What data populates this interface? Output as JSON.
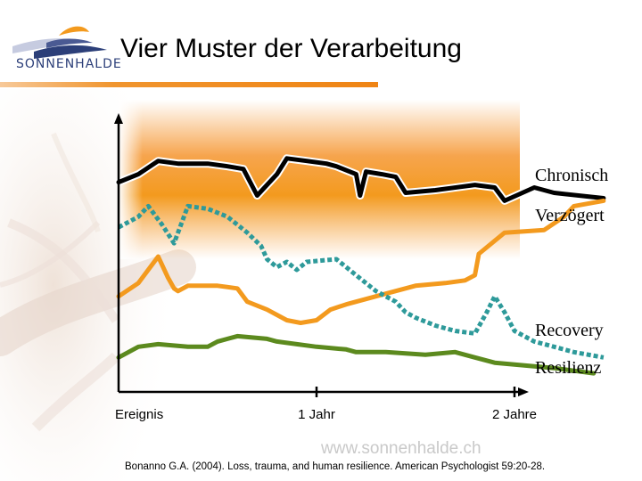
{
  "slide": {
    "title": "Vier Muster der Verarbeitung",
    "logo_text": "SONNENHALDE",
    "watermark": "www.sonnenhalde.ch",
    "citation": "Bonanno G.A. (2004). Loss, trauma, and human resilience. American Psychologist 59:20-28."
  },
  "colors": {
    "accent_orange": "#f39a1e",
    "band_orange": "#f6a044",
    "logo_blue": "#2c3f79"
  },
  "chart_data": {
    "type": "line",
    "title": "",
    "xlabel": "",
    "ylabel": "",
    "x_ticks": [
      {
        "label": "Ereignis",
        "x": 0
      },
      {
        "label": "1 Jahr",
        "x": 1
      },
      {
        "label": "2 Jahre",
        "x": 2
      }
    ],
    "xlim": [
      0,
      2.9
    ],
    "ylim": [
      0,
      100
    ],
    "grid": false,
    "series": [
      {
        "name": "Chronisch",
        "color": "#000000",
        "style": "solid",
        "highlight_band": true,
        "points": [
          [
            0,
            79
          ],
          [
            0.1,
            82
          ],
          [
            0.2,
            87
          ],
          [
            0.3,
            86
          ],
          [
            0.45,
            86
          ],
          [
            0.55,
            85
          ],
          [
            0.63,
            84
          ],
          [
            0.7,
            74
          ],
          [
            0.8,
            82
          ],
          [
            0.85,
            88
          ],
          [
            0.95,
            87
          ],
          [
            1.05,
            86
          ],
          [
            1.1,
            85
          ],
          [
            1.2,
            82
          ],
          [
            1.22,
            74
          ],
          [
            1.25,
            83
          ],
          [
            1.33,
            82
          ],
          [
            1.4,
            81
          ],
          [
            1.45,
            75
          ],
          [
            1.6,
            76
          ],
          [
            1.8,
            78
          ],
          [
            1.9,
            77
          ],
          [
            1.95,
            72
          ],
          [
            2.1,
            77
          ],
          [
            2.2,
            75
          ],
          [
            2.45,
            73
          ]
        ]
      },
      {
        "name": "Verzögert",
        "color": "#f39a1e",
        "style": "solid",
        "points": [
          [
            0,
            36
          ],
          [
            0.1,
            41
          ],
          [
            0.2,
            51
          ],
          [
            0.25,
            43
          ],
          [
            0.28,
            39
          ],
          [
            0.3,
            38
          ],
          [
            0.35,
            40
          ],
          [
            0.5,
            40
          ],
          [
            0.6,
            39
          ],
          [
            0.65,
            34
          ],
          [
            0.75,
            31
          ],
          [
            0.85,
            27
          ],
          [
            0.92,
            26
          ],
          [
            1.0,
            27
          ],
          [
            1.07,
            31
          ],
          [
            1.15,
            33
          ],
          [
            1.25,
            35
          ],
          [
            1.35,
            37
          ],
          [
            1.5,
            40
          ],
          [
            1.65,
            41
          ],
          [
            1.75,
            42
          ],
          [
            1.8,
            44
          ],
          [
            1.82,
            52
          ],
          [
            1.95,
            60
          ],
          [
            2.15,
            61
          ],
          [
            2.25,
            66
          ],
          [
            2.3,
            70
          ],
          [
            2.45,
            72
          ]
        ]
      },
      {
        "name": "Recovery",
        "color": "#2e9a9a",
        "style": "dotted",
        "points": [
          [
            0,
            62
          ],
          [
            0.1,
            66
          ],
          [
            0.15,
            70
          ],
          [
            0.22,
            63
          ],
          [
            0.28,
            56
          ],
          [
            0.35,
            70
          ],
          [
            0.45,
            69
          ],
          [
            0.55,
            66
          ],
          [
            0.65,
            60
          ],
          [
            0.72,
            55
          ],
          [
            0.75,
            50
          ],
          [
            0.8,
            47
          ],
          [
            0.85,
            49
          ],
          [
            0.9,
            46
          ],
          [
            0.95,
            49
          ],
          [
            1.1,
            50
          ],
          [
            1.2,
            44
          ],
          [
            1.3,
            38
          ],
          [
            1.4,
            34
          ],
          [
            1.45,
            30
          ],
          [
            1.5,
            28
          ],
          [
            1.6,
            25
          ],
          [
            1.7,
            23
          ],
          [
            1.8,
            22
          ],
          [
            1.86,
            30
          ],
          [
            1.9,
            36
          ],
          [
            1.95,
            30
          ],
          [
            2.0,
            23
          ],
          [
            2.1,
            19
          ],
          [
            2.2,
            17
          ],
          [
            2.3,
            15
          ],
          [
            2.45,
            13
          ]
        ]
      },
      {
        "name": "Resilienz",
        "color": "#5c8a1e",
        "style": "solid",
        "points": [
          [
            0,
            13
          ],
          [
            0.05,
            15
          ],
          [
            0.1,
            17
          ],
          [
            0.2,
            18
          ],
          [
            0.35,
            17
          ],
          [
            0.45,
            17
          ],
          [
            0.5,
            19
          ],
          [
            0.6,
            21
          ],
          [
            0.75,
            20
          ],
          [
            0.8,
            19
          ],
          [
            0.9,
            18
          ],
          [
            1.0,
            17
          ],
          [
            1.15,
            16
          ],
          [
            1.2,
            15
          ],
          [
            1.35,
            15
          ],
          [
            1.55,
            14
          ],
          [
            1.7,
            15
          ],
          [
            1.8,
            13
          ],
          [
            1.9,
            11
          ],
          [
            2.05,
            10
          ],
          [
            2.2,
            9
          ],
          [
            2.3,
            8
          ],
          [
            2.4,
            7
          ]
        ]
      }
    ]
  }
}
